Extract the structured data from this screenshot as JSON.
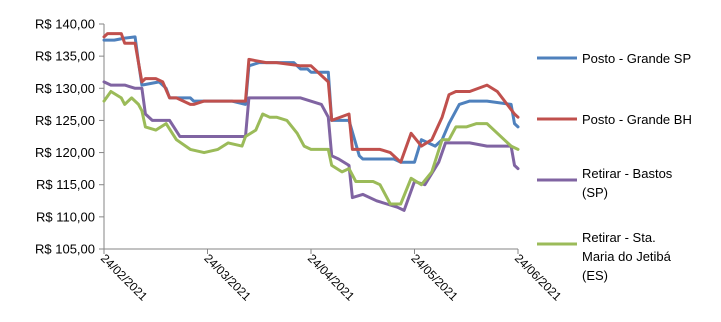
{
  "chart_data": {
    "type": "line",
    "title": "",
    "xlabel": "",
    "ylabel": "",
    "ylim": [
      105,
      140
    ],
    "y_ticks": [
      "R$ 105,00",
      "R$ 110,00",
      "R$ 115,00",
      "R$ 120,00",
      "R$ 125,00",
      "R$ 130,00",
      "R$ 135,00",
      "R$ 140,00"
    ],
    "x_ticks": [
      "24/02/2021",
      "24/03/2021",
      "24/04/2021",
      "24/05/2021",
      "24/06/2021"
    ],
    "x_range": [
      "2021-02-24",
      "2021-06-24"
    ],
    "legend_position": "right",
    "gridlines": false,
    "series": [
      {
        "name": "Posto - Grande SP",
        "color": "#4f81bd",
        "x": [
          "2021-02-24",
          "2021-02-27",
          "2021-03-02",
          "2021-03-05",
          "2021-03-06",
          "2021-03-07",
          "2021-03-12",
          "2021-03-14",
          "2021-03-15",
          "2021-03-21",
          "2021-03-22",
          "2021-04-02",
          "2021-04-06",
          "2021-04-07",
          "2021-04-10",
          "2021-04-15",
          "2021-04-20",
          "2021-04-22",
          "2021-04-23",
          "2021-04-24",
          "2021-04-25",
          "2021-04-30",
          "2021-05-01",
          "2021-05-06",
          "2021-05-09",
          "2021-05-10",
          "2021-05-13",
          "2021-05-15",
          "2021-05-19",
          "2021-05-21",
          "2021-05-25",
          "2021-05-27",
          "2021-05-31",
          "2021-06-02",
          "2021-06-04",
          "2021-06-07",
          "2021-06-10",
          "2021-06-15",
          "2021-06-22",
          "2021-06-23",
          "2021-06-24"
        ],
        "values": [
          137.5,
          137.5,
          137.8,
          138.0,
          134.0,
          130.5,
          131.0,
          130.0,
          128.5,
          128.5,
          128.0,
          128.0,
          127.5,
          133.5,
          134.0,
          134.0,
          134.0,
          133.0,
          133.0,
          133.0,
          132.5,
          132.5,
          125.0,
          125.0,
          119.5,
          119.0,
          119.0,
          119.0,
          119.0,
          118.5,
          118.5,
          122.0,
          121.0,
          122.0,
          124.5,
          127.5,
          128.0,
          128.0,
          127.5,
          124.5,
          124.0
        ]
      },
      {
        "name": "Posto - Grande BH",
        "color": "#c0504d",
        "x": [
          "2021-02-24",
          "2021-02-25",
          "2021-03-01",
          "2021-03-02",
          "2021-03-05",
          "2021-03-06",
          "2021-03-07",
          "2021-03-08",
          "2021-03-11",
          "2021-03-13",
          "2021-03-15",
          "2021-03-17",
          "2021-03-19",
          "2021-03-21",
          "2021-03-22",
          "2021-03-25",
          "2021-04-03",
          "2021-04-06",
          "2021-04-07",
          "2021-04-12",
          "2021-04-15",
          "2021-04-22",
          "2021-04-25",
          "2021-04-30",
          "2021-05-01",
          "2021-05-06",
          "2021-05-07",
          "2021-05-12",
          "2021-05-15",
          "2021-05-18",
          "2021-05-21",
          "2021-05-24",
          "2021-05-27",
          "2021-05-30",
          "2021-06-02",
          "2021-06-04",
          "2021-06-06",
          "2021-06-10",
          "2021-06-15",
          "2021-06-18",
          "2021-06-23",
          "2021-06-24"
        ],
        "values": [
          138.0,
          138.5,
          138.5,
          137.0,
          137.0,
          134.0,
          131.0,
          131.5,
          131.5,
          131.0,
          128.5,
          128.5,
          128.0,
          127.5,
          127.5,
          128.0,
          128.0,
          128.0,
          134.5,
          134.0,
          134.0,
          133.5,
          133.5,
          131.0,
          125.0,
          126.0,
          120.5,
          120.5,
          120.5,
          120.0,
          118.5,
          123.0,
          121.0,
          122.0,
          125.5,
          129.0,
          129.5,
          129.5,
          130.5,
          129.5,
          126.0,
          125.5
        ]
      },
      {
        "name": "Retirar - Bastos (SP)",
        "color": "#8064a2",
        "x": [
          "2021-02-24",
          "2021-02-26",
          "2021-03-02",
          "2021-03-05",
          "2021-03-07",
          "2021-03-08",
          "2021-03-10",
          "2021-03-14",
          "2021-03-15",
          "2021-03-18",
          "2021-03-25",
          "2021-04-06",
          "2021-04-07",
          "2021-04-15",
          "2021-04-22",
          "2021-04-28",
          "2021-04-30",
          "2021-05-01",
          "2021-05-03",
          "2021-05-06",
          "2021-05-07",
          "2021-05-10",
          "2021-05-14",
          "2021-05-17",
          "2021-05-20",
          "2021-05-22",
          "2021-05-25",
          "2021-05-28",
          "2021-06-01",
          "2021-06-03",
          "2021-06-10",
          "2021-06-15",
          "2021-06-21",
          "2021-06-22",
          "2021-06-23",
          "2021-06-24"
        ],
        "values": [
          131.0,
          130.5,
          130.5,
          130.0,
          130.0,
          126.0,
          125.0,
          125.0,
          125.0,
          122.5,
          122.5,
          122.5,
          128.5,
          128.5,
          128.5,
          127.5,
          125.5,
          119.5,
          119.0,
          118.0,
          113.0,
          113.5,
          112.5,
          112.0,
          111.5,
          111.0,
          115.5,
          115.0,
          118.5,
          121.5,
          121.5,
          121.0,
          121.0,
          121.0,
          118.0,
          117.5
        ]
      },
      {
        "name": "Retirar - Sta. Maria do Jetibá (ES)",
        "color": "#9bbb59",
        "x": [
          "2021-02-24",
          "2021-02-26",
          "2021-03-01",
          "2021-03-02",
          "2021-03-04",
          "2021-03-06",
          "2021-03-07",
          "2021-03-08",
          "2021-03-11",
          "2021-03-14",
          "2021-03-17",
          "2021-03-21",
          "2021-03-25",
          "2021-03-29",
          "2021-04-01",
          "2021-04-05",
          "2021-04-06",
          "2021-04-09",
          "2021-04-11",
          "2021-04-13",
          "2021-04-15",
          "2021-04-18",
          "2021-04-21",
          "2021-04-23",
          "2021-04-25",
          "2021-04-28",
          "2021-04-30",
          "2021-05-01",
          "2021-05-04",
          "2021-05-06",
          "2021-05-08",
          "2021-05-11",
          "2021-05-13",
          "2021-05-15",
          "2021-05-18",
          "2021-05-21",
          "2021-05-24",
          "2021-05-27",
          "2021-05-30",
          "2021-06-02",
          "2021-06-04",
          "2021-06-06",
          "2021-06-09",
          "2021-06-12",
          "2021-06-15",
          "2021-06-20",
          "2021-06-22",
          "2021-06-24"
        ],
        "values": [
          128.0,
          129.5,
          128.5,
          127.5,
          128.5,
          127.5,
          126.5,
          124.0,
          123.5,
          124.5,
          122.0,
          120.5,
          120.0,
          120.5,
          121.5,
          121.0,
          122.5,
          123.5,
          126.0,
          125.5,
          125.5,
          125.0,
          123.0,
          121.0,
          120.5,
          120.5,
          120.5,
          118.0,
          117.0,
          117.5,
          115.5,
          115.5,
          115.5,
          115.0,
          112.0,
          112.0,
          116.0,
          115.0,
          117.0,
          122.0,
          122.0,
          124.0,
          124.0,
          124.5,
          124.5,
          122.0,
          121.0,
          120.5
        ]
      }
    ]
  }
}
